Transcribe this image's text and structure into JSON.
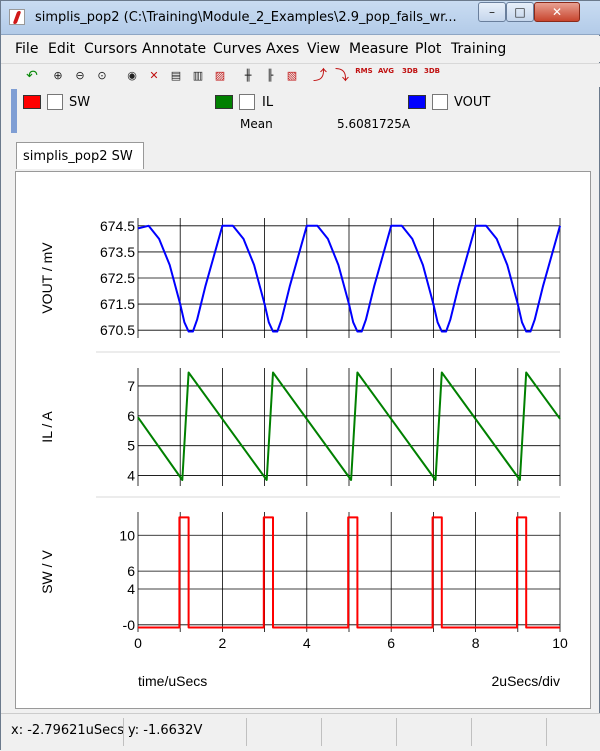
{
  "window": {
    "title": "simplis_pop2 (C:\\Training\\Module_2_Examples\\2.9_pop_fails_wr...",
    "controls": {
      "minimize": "–",
      "maximize": "□",
      "close": "✕"
    }
  },
  "menu": [
    "File",
    "Edit",
    "Cursors",
    "Annotate",
    "Curves",
    "Axes",
    "View",
    "Measure",
    "Plot",
    "Training"
  ],
  "toolbar": {
    "icons": [
      "undo-icon",
      "zoom-in-icon",
      "zoom-out-icon",
      "zoom-fit-icon",
      "view-icon",
      "delete-curve-icon",
      "label-icon",
      "cursor-icon",
      "color-icon",
      "grid-icon",
      "axis-icon",
      "print-icon",
      "rise-icon",
      "fall-icon",
      "rms-icon",
      "avg-icon",
      "3db-low-icon",
      "3db-high-icon"
    ],
    "labels": {
      "rms": "RMS",
      "avg": "AVG",
      "db1": "3DB",
      "db2": "3DB"
    }
  },
  "legend": {
    "entries": [
      {
        "name": "SW",
        "color": "#ff0000"
      },
      {
        "name": "IL",
        "color": "#008000"
      },
      {
        "name": "VOUT",
        "color": "#0000ff"
      }
    ],
    "measure": {
      "label": "Mean",
      "value": "5.6081725A"
    }
  },
  "tab": {
    "label": "simplis_pop2 SW"
  },
  "status": {
    "x": "x: -2.79621uSecs",
    "y": "y: -1.6632V"
  },
  "chart_data": [
    {
      "type": "line",
      "ylabel": "VOUT / mV",
      "ylim": [
        670.2,
        674.8
      ],
      "yticks": [
        "674.5",
        "673.5",
        "672.5",
        "671.5",
        "670.5"
      ],
      "ytick_values": [
        674.5,
        673.5,
        672.5,
        671.5,
        670.5
      ],
      "series": [
        {
          "name": "VOUT",
          "color": "#0000ff",
          "x": [
            0,
            0.25,
            0.5,
            0.75,
            1.0,
            1.1,
            1.2,
            1.3,
            1.4,
            1.6,
            2.0,
            2.25,
            2.5,
            2.75,
            3.0,
            3.1,
            3.2,
            3.3,
            3.4,
            3.6,
            4.0,
            4.25,
            4.5,
            4.75,
            5.0,
            5.1,
            5.2,
            5.3,
            5.4,
            5.6,
            6.0,
            6.25,
            6.5,
            6.75,
            7.0,
            7.1,
            7.2,
            7.3,
            7.4,
            7.6,
            8.0,
            8.25,
            8.5,
            8.75,
            9.0,
            9.1,
            9.2,
            9.3,
            9.4,
            9.6,
            10.0
          ],
          "y": [
            674.4,
            674.5,
            674.0,
            673.0,
            671.5,
            670.8,
            670.45,
            670.45,
            670.9,
            672.2,
            674.5,
            674.5,
            674.0,
            673.0,
            671.5,
            670.8,
            670.45,
            670.45,
            670.9,
            672.2,
            674.5,
            674.5,
            674.0,
            673.0,
            671.5,
            670.8,
            670.45,
            670.45,
            670.9,
            672.2,
            674.5,
            674.5,
            674.0,
            673.0,
            671.5,
            670.8,
            670.45,
            670.45,
            670.9,
            672.2,
            674.5,
            674.5,
            674.0,
            673.0,
            671.5,
            670.8,
            670.45,
            670.45,
            670.9,
            672.2,
            674.5
          ]
        }
      ]
    },
    {
      "type": "line",
      "ylabel": "IL / A",
      "ylim": [
        3.65,
        7.6
      ],
      "yticks": [
        "7",
        "6",
        "5",
        "4"
      ],
      "ytick_values": [
        7,
        6,
        5,
        4
      ],
      "series": [
        {
          "name": "IL",
          "color": "#008000",
          "x": [
            0,
            1.05,
            1.2,
            3.05,
            3.2,
            5.05,
            5.2,
            7.05,
            7.2,
            9.05,
            9.2,
            10.0
          ],
          "y": [
            5.95,
            3.85,
            7.45,
            3.85,
            7.45,
            3.85,
            7.45,
            3.85,
            7.45,
            3.85,
            7.45,
            5.9
          ]
        }
      ]
    },
    {
      "type": "line",
      "ylabel": "SW / V",
      "ylim": [
        -0.8,
        12.6
      ],
      "yticks": [
        "10",
        "6",
        "4",
        "-0"
      ],
      "ytick_values": [
        10,
        6,
        4,
        0
      ],
      "xlabel": "time/uSecs",
      "xscale": "2uSecs/div",
      "xticks": [
        "0",
        "2",
        "4",
        "6",
        "8",
        "10"
      ],
      "xtick_values": [
        0,
        2,
        4,
        6,
        8,
        10
      ],
      "xlim": [
        0,
        10
      ],
      "series": [
        {
          "name": "SW",
          "color": "#ff0000",
          "x": [
            0,
            0.98,
            0.98,
            1.2,
            1.2,
            2.98,
            2.98,
            3.2,
            3.2,
            4.98,
            4.98,
            5.2,
            5.2,
            6.98,
            6.98,
            7.2,
            7.2,
            8.98,
            8.98,
            9.2,
            9.2,
            10.0
          ],
          "y": [
            -0.3,
            -0.3,
            12.0,
            12.0,
            -0.3,
            -0.3,
            12.0,
            12.0,
            -0.3,
            -0.3,
            12.0,
            12.0,
            -0.3,
            -0.3,
            12.0,
            12.0,
            -0.3,
            -0.3,
            12.0,
            12.0,
            -0.3,
            -0.3
          ]
        }
      ]
    }
  ]
}
